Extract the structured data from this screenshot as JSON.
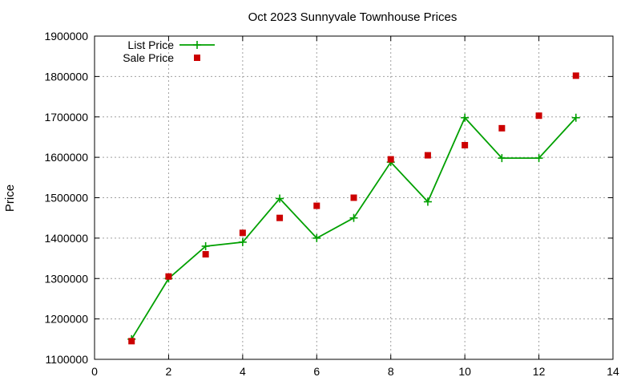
{
  "chart_data": {
    "type": "line",
    "title": "Oct 2023 Sunnyvale Townhouse Prices",
    "xlabel": "",
    "ylabel": "Price",
    "xlim": [
      0,
      14
    ],
    "ylim": [
      1100000,
      1900000
    ],
    "xticks": [
      0,
      2,
      4,
      6,
      8,
      10,
      12,
      14
    ],
    "yticks": [
      1100000,
      1200000,
      1300000,
      1400000,
      1500000,
      1600000,
      1700000,
      1800000,
      1900000
    ],
    "grid": true,
    "legend_position": "top-left",
    "series": [
      {
        "name": "List Price",
        "style": "line-with-plus-markers",
        "color": "#00a000",
        "x": [
          1,
          2,
          3,
          4,
          5,
          6,
          7,
          8,
          9,
          10,
          11,
          12,
          13
        ],
        "y": [
          1150000,
          1300000,
          1380000,
          1390000,
          1498000,
          1400000,
          1450000,
          1588000,
          1490000,
          1698000,
          1598000,
          1598000,
          1698000
        ]
      },
      {
        "name": "Sale Price",
        "style": "square-markers",
        "color": "#cc0000",
        "x": [
          1,
          2,
          3,
          4,
          5,
          6,
          7,
          8,
          9,
          10,
          11,
          12,
          13
        ],
        "y": [
          1145000,
          1305000,
          1360000,
          1413000,
          1450000,
          1480000,
          1500000,
          1595000,
          1605000,
          1630000,
          1672000,
          1703000,
          1802000
        ]
      }
    ]
  }
}
